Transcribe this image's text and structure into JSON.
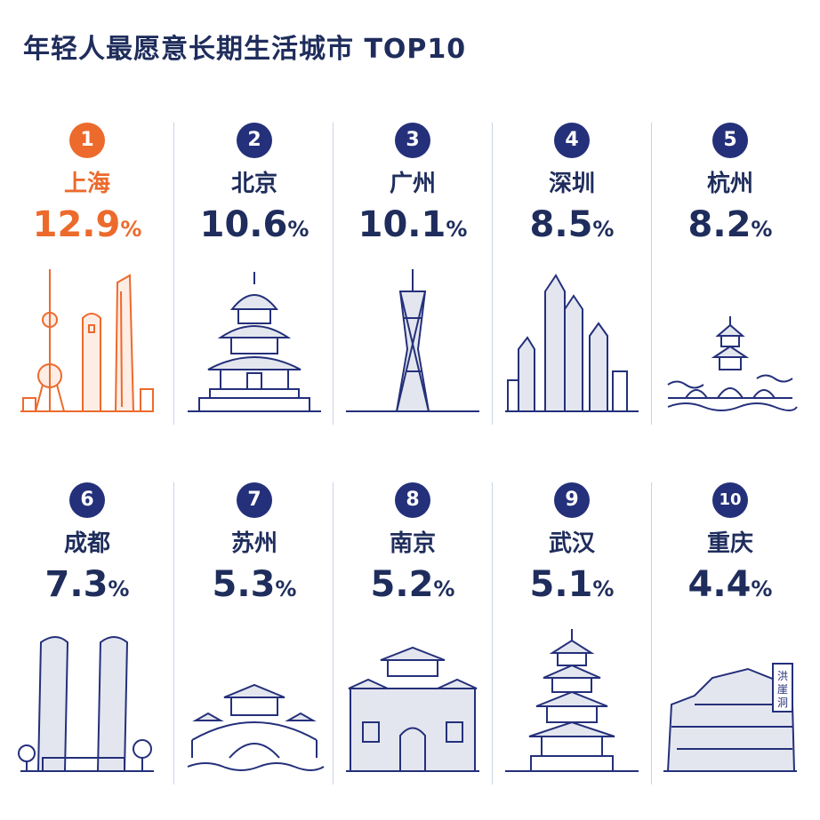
{
  "title": "年轻人最愿意长期生活城市 TOP10",
  "colors": {
    "primary": "#24307a",
    "highlight": "#ec6a2c",
    "text": "#1f2d5c",
    "line": "#c9d2e6"
  },
  "chart_data": {
    "type": "table",
    "title": "年轻人最愿意长期生活城市 TOP10",
    "unit": "%",
    "ranks": [
      "1",
      "2",
      "3",
      "4",
      "5",
      "6",
      "7",
      "8",
      "9",
      "10"
    ],
    "categories": [
      "上海",
      "北京",
      "广州",
      "深圳",
      "杭州",
      "成都",
      "苏州",
      "南京",
      "武汉",
      "重庆"
    ],
    "values": [
      12.9,
      10.6,
      10.1,
      8.5,
      8.2,
      7.3,
      5.3,
      5.2,
      5.1,
      4.4
    ],
    "value_labels": [
      "12.9",
      "10.6",
      "10.1",
      "8.5",
      "8.2",
      "7.3",
      "5.3",
      "5.2",
      "5.1",
      "4.4"
    ],
    "percent_sign": "%",
    "landmark_icons": [
      "shanghai-skyline-icon",
      "temple-of-heaven-icon",
      "canton-tower-icon",
      "shenzhen-skyscrapers-icon",
      "hangzhou-pagoda-bridge-icon",
      "chengdu-twin-towers-icon",
      "suzhou-garden-bridge-icon",
      "nanjing-city-gate-icon",
      "yellow-crane-tower-icon",
      "hongyadong-icon"
    ],
    "landmark_sign_text": "洪崖洞"
  }
}
